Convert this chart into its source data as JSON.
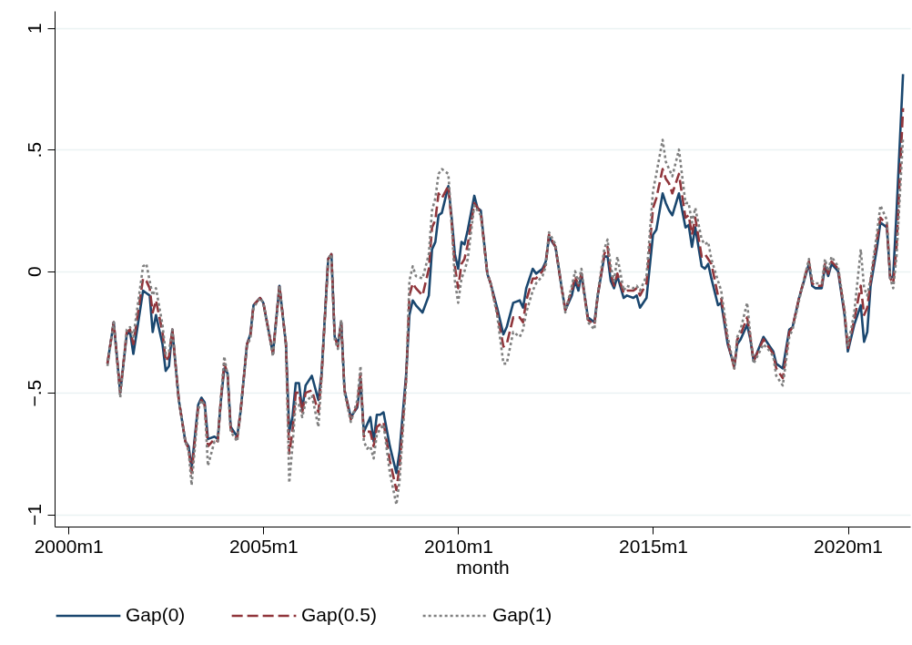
{
  "chart_data": {
    "type": "line",
    "xlabel": "month",
    "x": [
      "2001-01",
      "2001-03",
      "2001-05",
      "2001-07",
      "2001-08",
      "2001-09",
      "2001-12",
      "2002-01",
      "2002-02",
      "2002-03",
      "2002-04",
      "2002-06",
      "2002-07",
      "2002-08",
      "2002-09",
      "2002-11",
      "2003-01",
      "2003-02",
      "2003-03",
      "2003-05",
      "2003-06",
      "2003-07",
      "2003-08",
      "2003-10",
      "2003-11",
      "2003-12",
      "2004-01",
      "2004-02",
      "2004-03",
      "2004-05",
      "2004-06",
      "2004-08",
      "2004-09",
      "2004-10",
      "2004-12",
      "2005-01",
      "2005-04",
      "2005-06",
      "2005-08",
      "2005-09",
      "2005-10",
      "2005-11",
      "2005-12",
      "2006-01",
      "2006-02",
      "2006-04",
      "2006-06",
      "2006-07",
      "2006-09",
      "2006-10",
      "2006-11",
      "2006-12",
      "2007-01",
      "2007-02",
      "2007-04",
      "2007-06",
      "2007-07",
      "2007-08",
      "2007-09",
      "2007-10",
      "2007-11",
      "2007-12",
      "2008-01",
      "2008-02",
      "2008-04",
      "2008-06",
      "2008-07",
      "2008-09",
      "2008-10",
      "2008-11",
      "2008-12",
      "2009-02",
      "2009-04",
      "2009-05",
      "2009-06",
      "2009-07",
      "2009-08",
      "2009-10",
      "2009-11",
      "2009-12",
      "2010-01",
      "2010-02",
      "2010-03",
      "2010-04",
      "2010-06",
      "2010-07",
      "2010-08",
      "2010-10",
      "2010-11",
      "2011-01",
      "2011-03",
      "2011-04",
      "2011-06",
      "2011-08",
      "2011-09",
      "2011-10",
      "2011-12",
      "2012-01",
      "2012-03",
      "2012-04",
      "2012-05",
      "2012-07",
      "2012-09",
      "2012-10",
      "2012-12",
      "2013-01",
      "2013-02",
      "2013-03",
      "2013-05",
      "2013-07",
      "2013-08",
      "2013-10",
      "2013-11",
      "2013-12",
      "2014-01",
      "2014-02",
      "2014-04",
      "2014-05",
      "2014-07",
      "2014-08",
      "2014-09",
      "2014-11",
      "2015-01",
      "2015-02",
      "2015-04",
      "2015-05",
      "2015-06",
      "2015-07",
      "2015-09",
      "2015-11",
      "2015-12",
      "2016-01",
      "2016-02",
      "2016-04",
      "2016-05",
      "2016-06",
      "2016-07",
      "2016-09",
      "2016-10",
      "2016-12",
      "2017-02",
      "2017-03",
      "2017-04",
      "2017-06",
      "2017-07",
      "2017-08",
      "2017-11",
      "2018-01",
      "2018-02",
      "2018-03",
      "2018-05",
      "2018-07",
      "2018-08",
      "2018-10",
      "2019-01",
      "2019-02",
      "2019-03",
      "2019-05",
      "2019-06",
      "2019-07",
      "2019-08",
      "2019-10",
      "2019-12",
      "2020-01",
      "2020-03",
      "2020-05",
      "2020-06",
      "2020-07",
      "2020-08",
      "2020-10",
      "2020-11",
      "2021-01",
      "2021-02",
      "2021-03",
      "2021-04",
      "2021-06"
    ],
    "series": [
      {
        "name": "Gap(0)",
        "color": "#1a476f",
        "line_style": "solid",
        "values": [
          -0.38,
          -0.21,
          -0.5,
          -0.26,
          -0.25,
          -0.34,
          -0.08,
          -0.09,
          -0.1,
          -0.25,
          -0.18,
          -0.3,
          -0.41,
          -0.39,
          -0.24,
          -0.53,
          -0.7,
          -0.72,
          -0.81,
          -0.55,
          -0.52,
          -0.54,
          -0.69,
          -0.68,
          -0.69,
          -0.53,
          -0.4,
          -0.42,
          -0.64,
          -0.68,
          -0.58,
          -0.3,
          -0.26,
          -0.14,
          -0.11,
          -0.13,
          -0.34,
          -0.06,
          -0.3,
          -0.66,
          -0.6,
          -0.46,
          -0.46,
          -0.57,
          -0.47,
          -0.43,
          -0.53,
          -0.42,
          0.05,
          0.07,
          -0.27,
          -0.3,
          -0.21,
          -0.49,
          -0.6,
          -0.56,
          -0.45,
          -0.66,
          -0.63,
          -0.6,
          -0.7,
          -0.59,
          -0.59,
          -0.58,
          -0.72,
          -0.83,
          -0.74,
          -0.42,
          -0.18,
          -0.12,
          -0.14,
          -0.17,
          -0.1,
          0.09,
          0.12,
          0.23,
          0.24,
          0.35,
          0.22,
          0.07,
          0.01,
          0.12,
          0.11,
          0.17,
          0.31,
          0.26,
          0.25,
          -0.01,
          -0.05,
          -0.15,
          -0.26,
          -0.23,
          -0.13,
          -0.12,
          -0.15,
          -0.07,
          0.01,
          -0.01,
          0.01,
          0.04,
          0.14,
          0.1,
          -0.08,
          -0.16,
          -0.1,
          -0.04,
          -0.08,
          -0.01,
          -0.19,
          -0.21,
          -0.1,
          0.06,
          0.06,
          -0.04,
          -0.07,
          -0.02,
          -0.11,
          -0.1,
          -0.11,
          -0.1,
          -0.15,
          -0.11,
          0.15,
          0.17,
          0.32,
          0.28,
          0.25,
          0.23,
          0.32,
          0.18,
          0.19,
          0.1,
          0.18,
          0.02,
          0.01,
          0.03,
          -0.03,
          -0.14,
          -0.13,
          -0.3,
          -0.39,
          -0.3,
          -0.28,
          -0.22,
          -0.28,
          -0.37,
          -0.27,
          -0.31,
          -0.33,
          -0.38,
          -0.4,
          -0.24,
          -0.23,
          -0.11,
          0.03,
          -0.06,
          -0.07,
          -0.07,
          0.02,
          -0.02,
          0.03,
          0.0,
          -0.18,
          -0.33,
          -0.22,
          -0.14,
          -0.29,
          -0.25,
          -0.06,
          0.1,
          0.2,
          0.18,
          -0.03,
          -0.02,
          0.24,
          0.81
        ]
      },
      {
        "name": "Gap(0.5)",
        "color": "#90353b",
        "line_style": "dashed",
        "values": [
          -0.38,
          -0.21,
          -0.5,
          -0.25,
          -0.24,
          -0.3,
          -0.03,
          -0.04,
          -0.07,
          -0.17,
          -0.12,
          -0.25,
          -0.37,
          -0.35,
          -0.24,
          -0.53,
          -0.7,
          -0.73,
          -0.83,
          -0.56,
          -0.53,
          -0.55,
          -0.72,
          -0.69,
          -0.7,
          -0.52,
          -0.38,
          -0.42,
          -0.65,
          -0.69,
          -0.58,
          -0.3,
          -0.27,
          -0.14,
          -0.11,
          -0.13,
          -0.34,
          -0.06,
          -0.3,
          -0.75,
          -0.66,
          -0.5,
          -0.5,
          -0.58,
          -0.5,
          -0.49,
          -0.58,
          -0.43,
          0.05,
          0.07,
          -0.27,
          -0.31,
          -0.21,
          -0.49,
          -0.61,
          -0.55,
          -0.42,
          -0.68,
          -0.66,
          -0.66,
          -0.72,
          -0.64,
          -0.63,
          -0.62,
          -0.78,
          -0.9,
          -0.8,
          -0.44,
          -0.1,
          -0.05,
          -0.07,
          -0.1,
          0.01,
          0.18,
          0.21,
          0.32,
          0.3,
          0.35,
          0.2,
          0.02,
          -0.07,
          0.03,
          0.05,
          0.11,
          0.28,
          0.26,
          0.24,
          -0.01,
          -0.05,
          -0.17,
          -0.31,
          -0.3,
          -0.19,
          -0.19,
          -0.21,
          -0.12,
          -0.03,
          -0.03,
          0.0,
          0.03,
          0.15,
          0.1,
          -0.08,
          -0.16,
          -0.08,
          -0.02,
          -0.06,
          -0.01,
          -0.2,
          -0.22,
          -0.1,
          0.07,
          0.1,
          -0.01,
          -0.06,
          -0.01,
          -0.09,
          -0.08,
          -0.08,
          -0.07,
          -0.1,
          -0.05,
          0.26,
          0.3,
          0.42,
          0.38,
          0.36,
          0.32,
          0.4,
          0.22,
          0.23,
          0.15,
          0.22,
          0.06,
          0.07,
          0.05,
          0.03,
          -0.1,
          -0.11,
          -0.29,
          -0.4,
          -0.28,
          -0.26,
          -0.19,
          -0.27,
          -0.37,
          -0.28,
          -0.32,
          -0.34,
          -0.4,
          -0.44,
          -0.25,
          -0.23,
          -0.11,
          0.04,
          -0.05,
          -0.06,
          -0.06,
          0.03,
          -0.01,
          0.04,
          0.01,
          -0.17,
          -0.32,
          -0.2,
          -0.06,
          -0.18,
          -0.15,
          -0.04,
          0.13,
          0.22,
          0.19,
          -0.03,
          -0.05,
          0.1,
          0.67
        ]
      },
      {
        "name": "Gap(1)",
        "color": "#808080",
        "line_style": "dotted",
        "values": [
          -0.39,
          -0.21,
          -0.52,
          -0.24,
          -0.23,
          -0.27,
          0.02,
          0.03,
          -0.04,
          -0.1,
          -0.07,
          -0.22,
          -0.34,
          -0.33,
          -0.24,
          -0.53,
          -0.7,
          -0.74,
          -0.88,
          -0.57,
          -0.53,
          -0.55,
          -0.8,
          -0.7,
          -0.7,
          -0.52,
          -0.35,
          -0.43,
          -0.66,
          -0.7,
          -0.58,
          -0.3,
          -0.28,
          -0.15,
          -0.11,
          -0.13,
          -0.35,
          -0.06,
          -0.3,
          -0.87,
          -0.72,
          -0.54,
          -0.55,
          -0.6,
          -0.54,
          -0.51,
          -0.64,
          -0.44,
          0.05,
          0.07,
          -0.28,
          -0.32,
          -0.2,
          -0.5,
          -0.62,
          -0.53,
          -0.39,
          -0.7,
          -0.73,
          -0.72,
          -0.77,
          -0.67,
          -0.65,
          -0.63,
          -0.83,
          -0.96,
          -0.86,
          -0.45,
          -0.04,
          0.02,
          -0.02,
          -0.03,
          0.07,
          0.25,
          0.3,
          0.4,
          0.42,
          0.4,
          0.2,
          -0.04,
          -0.13,
          -0.03,
          0.0,
          0.05,
          0.27,
          0.25,
          0.23,
          -0.01,
          -0.05,
          -0.18,
          -0.38,
          -0.38,
          -0.25,
          -0.27,
          -0.24,
          -0.17,
          -0.08,
          -0.05,
          -0.02,
          0.02,
          0.16,
          0.11,
          -0.08,
          -0.17,
          -0.06,
          0.0,
          -0.05,
          0.01,
          -0.21,
          -0.24,
          -0.09,
          0.09,
          0.13,
          0.02,
          -0.04,
          0.06,
          -0.08,
          -0.06,
          -0.07,
          -0.06,
          -0.08,
          -0.02,
          0.33,
          0.4,
          0.54,
          0.45,
          0.42,
          0.39,
          0.5,
          0.28,
          0.28,
          0.2,
          0.26,
          0.13,
          0.11,
          0.12,
          0.05,
          -0.04,
          -0.08,
          -0.27,
          -0.4,
          -0.27,
          -0.24,
          -0.13,
          -0.26,
          -0.38,
          -0.3,
          -0.33,
          -0.35,
          -0.43,
          -0.47,
          -0.27,
          -0.24,
          -0.12,
          0.05,
          -0.04,
          -0.05,
          -0.05,
          0.05,
          0.0,
          0.06,
          0.02,
          -0.16,
          -0.31,
          -0.17,
          0.09,
          -0.07,
          -0.1,
          -0.03,
          0.16,
          0.27,
          0.21,
          -0.03,
          -0.07,
          0.06,
          0.55
        ]
      }
    ],
    "xlim": [
      "1999-08-25",
      "2021-08-07"
    ],
    "xticks": [
      {
        "value": "2000-01",
        "label": "2000m1"
      },
      {
        "value": "2005-01",
        "label": "2005m1"
      },
      {
        "value": "2010-01",
        "label": "2010m1"
      },
      {
        "value": "2015-01",
        "label": "2015m1"
      },
      {
        "value": "2020-01",
        "label": "2020m1"
      }
    ],
    "ylim": [
      -1.05,
      1.07
    ],
    "yticks": [
      {
        "value": -1,
        "label": "−1"
      },
      {
        "value": -0.5,
        "label": "−.5"
      },
      {
        "value": 0,
        "label": "0"
      },
      {
        "value": 0.5,
        "label": ".5"
      },
      {
        "value": 1,
        "label": "1"
      }
    ],
    "grid": "y",
    "legend": "bottom"
  }
}
